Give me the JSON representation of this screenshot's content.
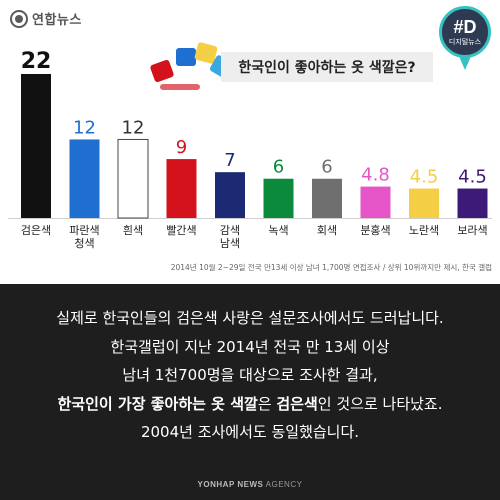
{
  "header": {
    "logo_text": "연합뉴스",
    "badge_main": "#D",
    "badge_sub": "디지털뉴스",
    "question": "한국인이 좋아하는 옷 색깔은?"
  },
  "chart_data": {
    "type": "bar",
    "categories": [
      [
        "검은색"
      ],
      [
        "파란색",
        "청색"
      ],
      [
        "흰색"
      ],
      [
        "빨간색"
      ],
      [
        "감색",
        "남색"
      ],
      [
        "녹색"
      ],
      [
        "회색"
      ],
      [
        "분홍색"
      ],
      [
        "노란색"
      ],
      [
        "보라색"
      ]
    ],
    "values": [
      22,
      12,
      12,
      9,
      7,
      6,
      6,
      4.8,
      4.5,
      4.5
    ],
    "value_labels": [
      "22",
      "12",
      "12",
      "9",
      "7",
      "6",
      "6",
      "4.8",
      "4.5",
      "4.5"
    ],
    "bar_colors": [
      "#111111",
      "#1f6fd1",
      "#ffffff",
      "#d3121b",
      "#1b2a73",
      "#0c8a3c",
      "#6f6f6f",
      "#e655c8",
      "#f4cf46",
      "#3d1a78"
    ],
    "label_colors": [
      "#111111",
      "#1f6fd1",
      "#333333",
      "#d3121b",
      "#1b2a73",
      "#0c8a3c",
      "#6f6f6f",
      "#e655c8",
      "#f4cf46",
      "#3d1a78"
    ],
    "title": "한국인이 좋아하는 옷 색깔은?",
    "ylim": [
      0,
      22
    ],
    "grid": false,
    "legend": "none",
    "unit": "%"
  },
  "note": "2014년 10월 2~29일 전국 만13세 이상 남녀 1,700명 면접조사 / 상위 10위까지만 제시, 한국 갤럽",
  "body": {
    "line1": "실제로 한국인들의 검은색 사랑은 설문조사에서도 드러납니다.",
    "line2": "한국갤럽이 지난 2014년 전국 만 13세 이상",
    "line3": "남녀 1천700명을 대상으로 조사한 결과,",
    "line4_bold1": "한국인이 가장 좋아하는 옷 색깔",
    "line4_mid": "은 ",
    "line4_bold2": "검은색",
    "line4_end": "인 것으로 나타났죠.",
    "line5": "2004년 조사에서도 동일했습니다."
  },
  "footer": {
    "agency_bold": "YONHAP NEWS",
    "agency_rest": " AGENCY"
  }
}
